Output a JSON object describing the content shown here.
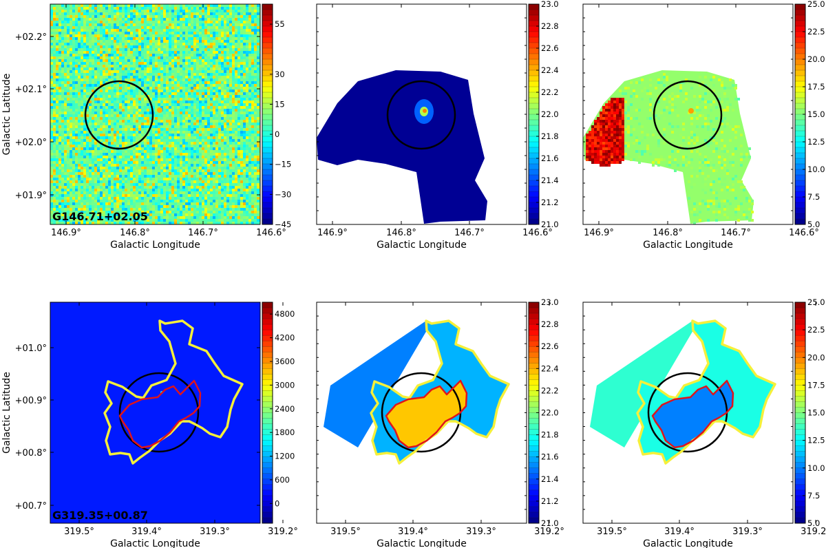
{
  "figure": {
    "panel_axis_label_x": "Galactic Longitude",
    "panel_axis_label_y": "Galactic Latitude"
  },
  "chart_data": [
    {
      "type": "heatmap",
      "row": "top",
      "label": "G146.71+02.05",
      "xlabel": "Galactic Longitude",
      "ylabel": "Galactic Latitude",
      "xticks": [
        "146.9°",
        "146.8°",
        "146.7°",
        "146.6°"
      ],
      "yticks": [
        "+02.2°",
        "+02.1°",
        "+02.0°",
        "+01.9°"
      ],
      "colorbar_ticks": [
        "55",
        "30",
        "15",
        "0",
        "−15",
        "−30",
        "−45"
      ],
      "colorbar_range": [
        -45,
        65
      ],
      "grid": false
    },
    {
      "type": "heatmap",
      "row": "top",
      "xlabel": "Galactic Longitude",
      "xticks": [
        "146.9°",
        "146.8°",
        "146.7°",
        "146.6°"
      ],
      "colorbar_ticks": [
        "23.0",
        "22.8",
        "22.6",
        "22.4",
        "22.2",
        "22.0",
        "21.8",
        "21.6",
        "21.4",
        "21.2",
        "21.0"
      ],
      "colorbar_range": [
        21.0,
        23.0
      ],
      "grid": false
    },
    {
      "type": "heatmap",
      "row": "top",
      "xlabel": "Galactic Longitude",
      "xticks": [
        "146.9°",
        "146.8°",
        "146.7°",
        "146.6°"
      ],
      "colorbar_ticks": [
        "25.0",
        "22.5",
        "20.0",
        "17.5",
        "15.0",
        "12.5",
        "10.0",
        "7.5",
        "5.0"
      ],
      "colorbar_range": [
        5.0,
        25.0
      ],
      "grid": false
    },
    {
      "type": "heatmap",
      "row": "bottom",
      "label": "G319.35+00.87",
      "xlabel": "Galactic Longitude",
      "ylabel": "Galactic Latitude",
      "xticks": [
        "319.5°",
        "319.4°",
        "319.3°",
        "319.2°"
      ],
      "yticks": [
        "+01.0°",
        "+00.9°",
        "+00.8°",
        "+00.7°"
      ],
      "colorbar_ticks": [
        "4800",
        "4200",
        "3600",
        "3000",
        "2400",
        "1800",
        "1200",
        "600",
        "0"
      ],
      "colorbar_range": [
        -500,
        5100
      ],
      "grid": false
    },
    {
      "type": "heatmap",
      "row": "bottom",
      "xlabel": "Galactic Longitude",
      "xticks": [
        "319.5°",
        "319.4°",
        "319.3°",
        "319.2°"
      ],
      "colorbar_ticks": [
        "23.0",
        "22.8",
        "22.6",
        "22.4",
        "22.2",
        "22.0",
        "21.8",
        "21.6",
        "21.4",
        "21.2",
        "21.0"
      ],
      "colorbar_range": [
        21.0,
        23.0
      ],
      "grid": false
    },
    {
      "type": "heatmap",
      "row": "bottom",
      "xlabel": "Galactic Longitude",
      "xticks": [
        "319.5°",
        "319.4°",
        "319.3°",
        "319.2°"
      ],
      "colorbar_ticks": [
        "25.0",
        "22.5",
        "20.0",
        "17.5",
        "15.0",
        "12.5",
        "10.0",
        "7.5",
        "5.0"
      ],
      "colorbar_range": [
        5.0,
        25.0
      ],
      "grid": false
    }
  ],
  "colors": {
    "colormap": "jet",
    "circle": "#000000",
    "contour_outer": "#f5f03a",
    "contour_inner": "#e0141a"
  }
}
